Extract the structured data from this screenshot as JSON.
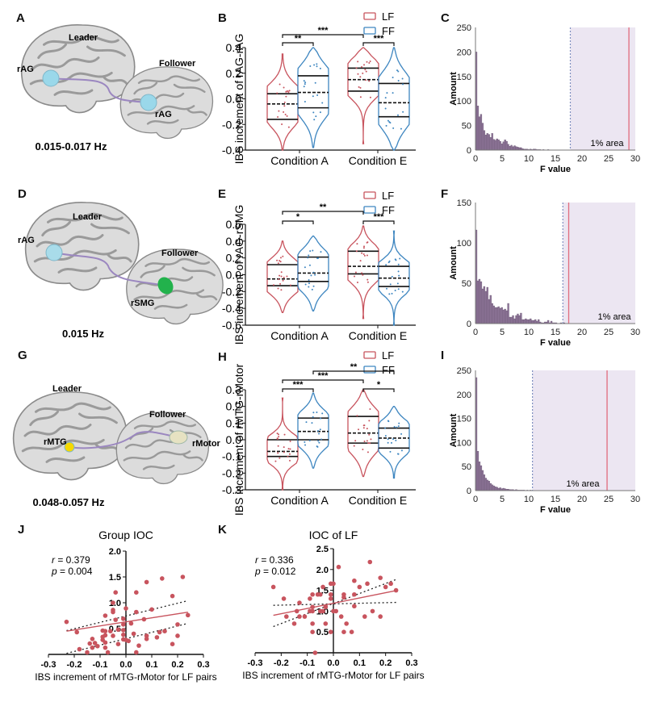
{
  "figure": {
    "panel_labels": [
      "A",
      "B",
      "C",
      "D",
      "E",
      "F",
      "G",
      "H",
      "I",
      "J",
      "K"
    ]
  },
  "brains": [
    {
      "id": "A",
      "leader_label": "Leader",
      "follower_label": "Follower",
      "leader_roi": "rAG",
      "follower_roi": "rAG",
      "frequency": "0.015-0.017 Hz",
      "leader_roi_color": "#9ad8ea",
      "follower_roi_color": "#9ad8ea",
      "connection_color": "#9b87c0"
    },
    {
      "id": "D",
      "leader_label": "Leader",
      "follower_label": "Follower",
      "leader_roi": "rAG",
      "follower_roi": "rSMG",
      "frequency": "0.015 Hz",
      "leader_roi_color": "#a9dcea",
      "follower_roi_color": "#22b24c",
      "connection_color": "#9b87c0"
    },
    {
      "id": "G",
      "leader_label": "Leader",
      "follower_label": "Follower",
      "leader_roi": "rMTG",
      "follower_roi": "rMotor",
      "frequency": "0.048-0.057 Hz",
      "leader_roi_color": "#f5d800",
      "follower_roi_color": "#e6e2c2",
      "connection_color": "#9b87c0"
    }
  ],
  "colors": {
    "LF": "#c8545e",
    "FF": "#3e86c0",
    "hist_bar": "#8d7497",
    "shade": "#ece6f2",
    "threshold": "#7f8fc0",
    "observed": "#e06b7d",
    "scatter": "#c8545e"
  },
  "chart_data": [
    {
      "id": "B",
      "type": "violin",
      "ylabel": "IBS increment of rAG-rAG",
      "ylim": [
        -0.4,
        0.4
      ],
      "yticks": [
        "-0.4",
        "-0.2",
        "0.0",
        "0.2",
        "0.4"
      ],
      "ytick_values": [
        -0.4,
        -0.2,
        0.0,
        0.2,
        0.4
      ],
      "categories": [
        "Condition A",
        "Condition E"
      ],
      "legend": [
        "LF",
        "FF"
      ],
      "legend_position": "top-right",
      "series": [
        {
          "name": "LF",
          "groups": [
            {
              "min": -0.4,
              "max": 0.35,
              "q1": -0.16,
              "median": -0.04,
              "q3": 0.04
            },
            {
              "min": -0.35,
              "max": 0.4,
              "q1": 0.06,
              "median": 0.15,
              "q3": 0.24
            }
          ]
        },
        {
          "name": "FF",
          "groups": [
            {
              "min": -0.38,
              "max": 0.4,
              "q1": -0.07,
              "median": 0.05,
              "q3": 0.18
            },
            {
              "min": -0.4,
              "max": 0.4,
              "q1": -0.14,
              "median": -0.03,
              "q3": 0.12
            }
          ]
        }
      ],
      "significance": [
        {
          "from": "LF-A",
          "to": "FF-A",
          "label": "**"
        },
        {
          "from": "LF-A",
          "to": "LF-E",
          "label": "***"
        },
        {
          "from": "LF-E",
          "to": "FF-E",
          "label": "***"
        }
      ]
    },
    {
      "id": "E",
      "type": "violin",
      "ylabel": "IBS increment of rAG-rSMG",
      "ylim": [
        -0.6,
        0.6
      ],
      "yticks": [
        "-0.6",
        "-0.4",
        "-0.2",
        "0.0",
        "0.2",
        "0.4",
        "0.6"
      ],
      "ytick_values": [
        -0.6,
        -0.4,
        -0.2,
        0.0,
        0.2,
        0.4,
        0.6
      ],
      "categories": [
        "Condition A",
        "Condition E"
      ],
      "legend": [
        "LF",
        "FF"
      ],
      "legend_position": "top-right",
      "series": [
        {
          "name": "LF",
          "groups": [
            {
              "min": -0.45,
              "max": 0.4,
              "q1": -0.13,
              "median": -0.05,
              "q3": 0.12
            },
            {
              "min": -0.52,
              "max": 0.58,
              "q1": 0.01,
              "median": 0.1,
              "q3": 0.28
            }
          ]
        },
        {
          "name": "FF",
          "groups": [
            {
              "min": -0.43,
              "max": 0.46,
              "q1": -0.08,
              "median": 0.02,
              "q3": 0.21
            },
            {
              "min": -0.6,
              "max": 0.52,
              "q1": -0.14,
              "median": -0.04,
              "q3": 0.1
            }
          ]
        }
      ],
      "significance": [
        {
          "from": "LF-A",
          "to": "FF-A",
          "label": "*"
        },
        {
          "from": "LF-A",
          "to": "LF-E",
          "label": "**"
        },
        {
          "from": "LF-E",
          "to": "FF-E",
          "label": "***"
        }
      ]
    },
    {
      "id": "H",
      "type": "violin",
      "ylabel": "IBS increment of rMTG-rMotor",
      "ylim": [
        -0.3,
        0.3
      ],
      "yticks": [
        "-0.3",
        "-0.2",
        "-0.1",
        "0.0",
        "0.1",
        "0.2",
        "0.3"
      ],
      "ytick_values": [
        -0.3,
        -0.2,
        -0.1,
        0.0,
        0.1,
        0.2,
        0.3
      ],
      "categories": [
        "Condition A",
        "Condition E"
      ],
      "legend": [
        "LF",
        "FF"
      ],
      "legend_position": "top-right",
      "series": [
        {
          "name": "LF",
          "groups": [
            {
              "min": -0.3,
              "max": 0.25,
              "q1": -0.1,
              "median": -0.07,
              "q3": 0.0
            },
            {
              "min": -0.22,
              "max": 0.3,
              "q1": -0.02,
              "median": 0.04,
              "q3": 0.14
            }
          ]
        },
        {
          "name": "FF",
          "groups": [
            {
              "min": -0.17,
              "max": 0.28,
              "q1": 0.0,
              "median": 0.05,
              "q3": 0.13
            },
            {
              "min": -0.23,
              "max": 0.2,
              "q1": -0.05,
              "median": 0.01,
              "q3": 0.07
            }
          ]
        }
      ],
      "significance": [
        {
          "from": "LF-A",
          "to": "FF-A",
          "label": "***"
        },
        {
          "from": "LF-A",
          "to": "LF-E",
          "label": "***"
        },
        {
          "from": "FF-A",
          "to": "FF-E",
          "label": "**"
        },
        {
          "from": "LF-E",
          "to": "FF-E",
          "label": "*"
        }
      ]
    },
    {
      "id": "C",
      "type": "bar",
      "subtype": "histogram",
      "xlabel": "F value",
      "ylabel": "Amount",
      "xlim": [
        0,
        30
      ],
      "ylim": [
        0,
        250
      ],
      "xticks": [
        "0",
        "5",
        "10",
        "15",
        "20",
        "25",
        "30"
      ],
      "xtick_values": [
        0,
        5,
        10,
        15,
        20,
        25,
        30
      ],
      "yticks": [
        "0",
        "50",
        "100",
        "150",
        "200",
        "250"
      ],
      "ytick_values": [
        0,
        50,
        100,
        150,
        200,
        250
      ],
      "bin_width": 0.3,
      "values": [
        200,
        90,
        68,
        73,
        55,
        40,
        31,
        34,
        32,
        26,
        34,
        22,
        20,
        23,
        21,
        18,
        13,
        17,
        21,
        18,
        12,
        8,
        10,
        7,
        9,
        7,
        6,
        5,
        5,
        3,
        2,
        2,
        2,
        1,
        2,
        1,
        2,
        2,
        1,
        1,
        1,
        0,
        1,
        0,
        0,
        1,
        0,
        0
      ],
      "threshold": 17.8,
      "observed": 28.8,
      "annotation": "1% area"
    },
    {
      "id": "F",
      "type": "bar",
      "subtype": "histogram",
      "xlabel": "F value",
      "ylabel": "Amount",
      "xlim": [
        0,
        30
      ],
      "ylim": [
        0,
        150
      ],
      "xticks": [
        "0",
        "5",
        "10",
        "15",
        "20",
        "25",
        "30"
      ],
      "xtick_values": [
        0,
        5,
        10,
        15,
        20,
        25,
        30
      ],
      "yticks": [
        "0",
        "50",
        "100",
        "150"
      ],
      "ytick_values": [
        0,
        50,
        100,
        150
      ],
      "bin_width": 0.3,
      "values": [
        116,
        53,
        55,
        52,
        43,
        46,
        40,
        45,
        30,
        35,
        25,
        22,
        20,
        20,
        21,
        19,
        20,
        17,
        18,
        16,
        25,
        8,
        8,
        10,
        6,
        10,
        12,
        10,
        13,
        5,
        5,
        6,
        5,
        5,
        6,
        4,
        4,
        5,
        3,
        5,
        2,
        1,
        1,
        2,
        2,
        4,
        1,
        3,
        1,
        1,
        1,
        0,
        0,
        1,
        0,
        1,
        0,
        0
      ],
      "threshold": 16.4,
      "observed": 17.5,
      "annotation": "1% area"
    },
    {
      "id": "I",
      "type": "bar",
      "subtype": "histogram",
      "xlabel": "F value",
      "ylabel": "Amount",
      "xlim": [
        0,
        30
      ],
      "ylim": [
        0,
        250
      ],
      "xticks": [
        "0",
        "5",
        "10",
        "15",
        "20",
        "25",
        "30"
      ],
      "xtick_values": [
        0,
        5,
        10,
        15,
        20,
        25,
        30
      ],
      "yticks": [
        "0",
        "50",
        "100",
        "150",
        "200",
        "250"
      ],
      "ytick_values": [
        0,
        50,
        100,
        150,
        200,
        250
      ],
      "bin_width": 0.3,
      "values": [
        235,
        82,
        60,
        52,
        42,
        33,
        26,
        22,
        20,
        15,
        12,
        10,
        8,
        7,
        5,
        6,
        4,
        5,
        4,
        3,
        3,
        2,
        2,
        2,
        1,
        2,
        1,
        1,
        1,
        1,
        1,
        0,
        1,
        0,
        1,
        0
      ],
      "threshold": 10.7,
      "observed": 24.7,
      "annotation": "1% area"
    },
    {
      "id": "J",
      "type": "scatter",
      "title": "Group IOC",
      "xlabel": "IBS increment of rMTG-rMotor for LF pairs",
      "ylabel": "",
      "xlim": [
        -0.3,
        0.3
      ],
      "ylim": [
        0.0,
        2.0
      ],
      "xticks": [
        "-0.3",
        "-0.2",
        "-0.1",
        "0.0",
        "0.1",
        "0.2",
        "0.3"
      ],
      "xtick_values": [
        -0.3,
        -0.2,
        -0.1,
        0.0,
        0.1,
        0.2,
        0.3
      ],
      "yticks": [
        "0.5",
        "1.0",
        "1.5",
        "2.0"
      ],
      "ytick_values": [
        0.5,
        1.0,
        1.5,
        2.0
      ],
      "stats": {
        "r_label": "r",
        "r_value": "= 0.379",
        "p_label": "p",
        "p_value": "= 0.004"
      },
      "points": [
        [
          -0.23,
          0.63
        ],
        [
          -0.19,
          0.43
        ],
        [
          -0.18,
          0.1
        ],
        [
          -0.15,
          0.04
        ],
        [
          -0.14,
          0.21
        ],
        [
          -0.13,
          0.3
        ],
        [
          -0.13,
          0.13
        ],
        [
          -0.12,
          0.22
        ],
        [
          -0.11,
          0.16
        ],
        [
          -0.09,
          0.46
        ],
        [
          -0.09,
          0.34
        ],
        [
          -0.09,
          0.28
        ],
        [
          -0.08,
          0.75
        ],
        [
          -0.08,
          0.45
        ],
        [
          -0.08,
          0.37
        ],
        [
          -0.08,
          0.23
        ],
        [
          -0.08,
          0.13
        ],
        [
          -0.07,
          0.04
        ],
        [
          -0.06,
          0.45
        ],
        [
          -0.05,
          1.0
        ],
        [
          -0.05,
          0.86
        ],
        [
          -0.05,
          0.82
        ],
        [
          -0.05,
          0.36
        ],
        [
          -0.04,
          1.2
        ],
        [
          -0.04,
          0.67
        ],
        [
          -0.03,
          0.48
        ],
        [
          -0.03,
          0.2
        ],
        [
          -0.01,
          0.69
        ],
        [
          -0.01,
          0.58
        ],
        [
          -0.01,
          0.47
        ],
        [
          -0.01,
          0.38
        ],
        [
          -0.01,
          0.29
        ],
        [
          0.0,
          0.89
        ],
        [
          0.0,
          0.28
        ],
        [
          0.01,
          0.26
        ],
        [
          0.02,
          0.6
        ],
        [
          0.03,
          0.4
        ],
        [
          0.04,
          1.2
        ],
        [
          0.04,
          0.82
        ],
        [
          0.04,
          0.04
        ],
        [
          0.05,
          0.17
        ],
        [
          0.07,
          0.68
        ],
        [
          0.08,
          1.4
        ],
        [
          0.08,
          0.36
        ],
        [
          0.08,
          0.3
        ],
        [
          0.1,
          0.87
        ],
        [
          0.12,
          0.33
        ],
        [
          0.13,
          0.43
        ],
        [
          0.14,
          1.47
        ],
        [
          0.15,
          0.45
        ],
        [
          0.18,
          1.13
        ],
        [
          0.18,
          0.2
        ],
        [
          0.2,
          0.58
        ],
        [
          0.2,
          0.36
        ],
        [
          0.22,
          1.5
        ],
        [
          0.24,
          0.76
        ]
      ],
      "fit": {
        "slope": 0.78,
        "intercept": 0.63
      },
      "ci_lines": [
        [
          [
            -0.23,
            0.46
          ],
          [
            0.24,
            1.04
          ]
        ],
        [
          [
            -0.23,
            0.02
          ],
          [
            0.24,
            0.6
          ]
        ]
      ]
    },
    {
      "id": "K",
      "type": "scatter",
      "title": "IOC of LF",
      "xlabel": "IBS increment of rMTG-rMotor for LF pairs",
      "ylabel": "",
      "xlim": [
        -0.3,
        0.3
      ],
      "ylim": [
        0.0,
        2.5
      ],
      "xticks": [
        "-0.3",
        "-0.2",
        "-0.1",
        "0.0",
        "0.1",
        "0.2",
        "0.3"
      ],
      "xtick_values": [
        -0.3,
        -0.2,
        -0.1,
        0.0,
        0.1,
        0.2,
        0.3
      ],
      "yticks": [
        "0.5",
        "1.0",
        "1.5",
        "2.0",
        "2.5"
      ],
      "ytick_values": [
        0.5,
        1.0,
        1.5,
        2.0,
        2.5
      ],
      "stats": {
        "r_label": "r",
        "r_value": "= 0.336",
        "p_label": "p",
        "p_value": "= 0.012"
      },
      "points": [
        [
          -0.23,
          1.58
        ],
        [
          -0.19,
          1.3
        ],
        [
          -0.18,
          0.87
        ],
        [
          -0.15,
          0.7
        ],
        [
          -0.14,
          1.0
        ],
        [
          -0.13,
          1.2
        ],
        [
          -0.13,
          0.87
        ],
        [
          -0.11,
          0.87
        ],
        [
          -0.09,
          1.3
        ],
        [
          -0.09,
          1.0
        ],
        [
          -0.08,
          1.4
        ],
        [
          -0.08,
          1.1
        ],
        [
          -0.08,
          1.0
        ],
        [
          -0.08,
          0.7
        ],
        [
          -0.08,
          0.5
        ],
        [
          -0.07,
          0.0
        ],
        [
          -0.06,
          1.4
        ],
        [
          -0.05,
          1.4
        ],
        [
          -0.05,
          1.0
        ],
        [
          -0.04,
          1.58
        ],
        [
          -0.04,
          1.0
        ],
        [
          -0.03,
          1.1
        ],
        [
          -0.03,
          0.7
        ],
        [
          -0.01,
          1.66
        ],
        [
          -0.01,
          1.4
        ],
        [
          -0.01,
          1.3
        ],
        [
          -0.01,
          0.5
        ],
        [
          0.0,
          1.66
        ],
        [
          0.0,
          1.0
        ],
        [
          0.01,
          1.0
        ],
        [
          0.02,
          2.06
        ],
        [
          0.03,
          0.87
        ],
        [
          0.04,
          1.4
        ],
        [
          0.04,
          1.33
        ],
        [
          0.04,
          0.5
        ],
        [
          0.05,
          0.7
        ],
        [
          0.07,
          0.5
        ],
        [
          0.08,
          1.73
        ],
        [
          0.08,
          1.4
        ],
        [
          0.08,
          1.12
        ],
        [
          0.1,
          1.58
        ],
        [
          0.12,
          0.87
        ],
        [
          0.13,
          1.66
        ],
        [
          0.14,
          2.18
        ],
        [
          0.15,
          1.0
        ],
        [
          0.18,
          1.8
        ],
        [
          0.18,
          0.87
        ],
        [
          0.2,
          1.58
        ],
        [
          0.22,
          1.66
        ],
        [
          0.24,
          1.5
        ]
      ],
      "fit": {
        "slope": 1.26,
        "intercept": 1.19
      },
      "ci_lines": [
        [
          [
            -0.23,
            1.14
          ],
          [
            0.24,
            1.21
          ]
        ],
        [
          [
            -0.23,
            0.63
          ],
          [
            0.24,
            1.76
          ]
        ]
      ]
    }
  ]
}
